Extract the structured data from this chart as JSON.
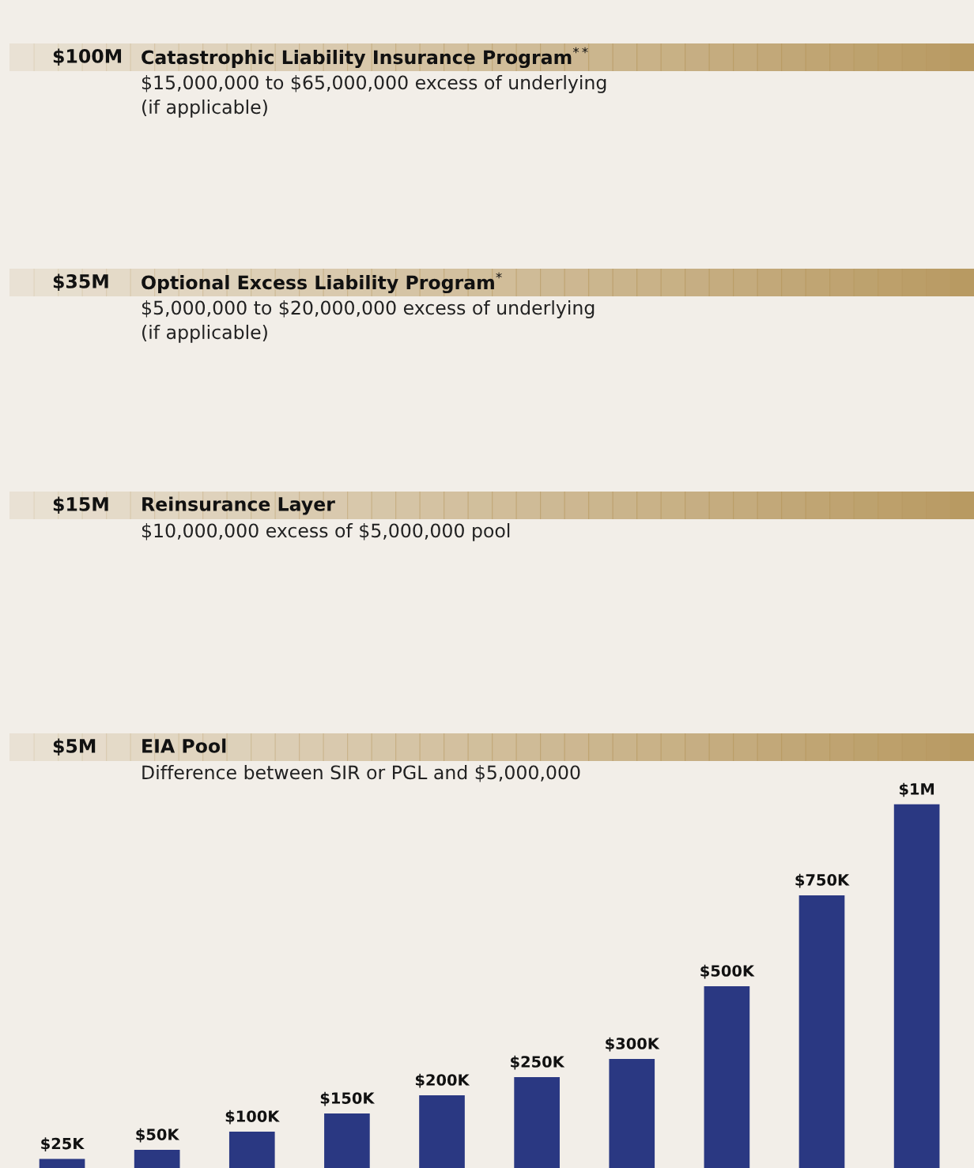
{
  "chart_data": {
    "type": "bar",
    "categories": [
      null,
      null,
      null,
      null,
      null,
      null,
      null,
      null,
      null,
      null
    ],
    "values": [
      25000,
      50000,
      100000,
      150000,
      200000,
      250000,
      300000,
      500000,
      750000,
      1000000
    ],
    "value_labels": [
      "$25K",
      "$50K",
      "$100K",
      "$150K",
      "$200K",
      "$250K",
      "$300K",
      "$500K",
      "$750K",
      "$1M"
    ],
    "color": "#2a3882",
    "grid": false,
    "legend": false,
    "annotations": [
      "$100M",
      "Catastrophic Liability Insurance Program$^{**}$",
      "$15,000,000 to $65,000,000 excess of underlying\n(if applicable)",
      "$35M",
      "Optional Excess Liability Program$^{*}$",
      "$5,000,000 to $20,000,000 excess of underlying\n(if applicable)",
      "$15M",
      "Reinsurance Layer",
      "$10,000,000 excess of $5,000,000 pool",
      "$5M",
      "EIA Pool",
      "Difference between SIR or PGL and $5,000,000"
    ]
  }
}
